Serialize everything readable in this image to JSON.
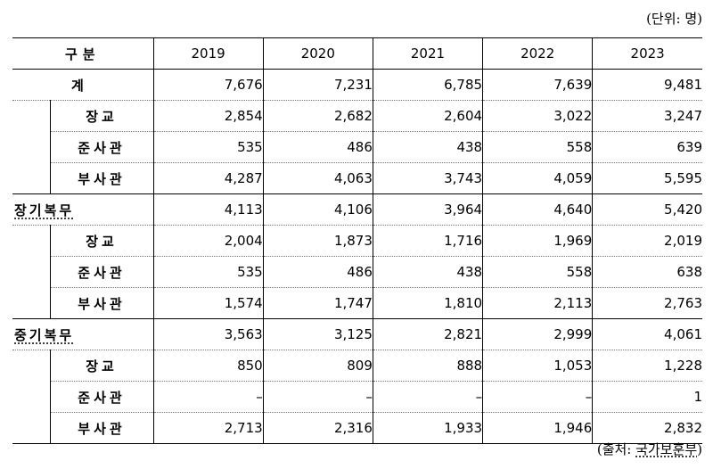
{
  "unit_note": "(단위: 명)",
  "source_prefix": "(출처: ",
  "source_org": "국가보훈부",
  "source_suffix": ")",
  "header": {
    "category": "구분",
    "years": [
      "2019",
      "2020",
      "2021",
      "2022",
      "2023"
    ]
  },
  "groups": [
    {
      "label": "계",
      "values": [
        "7,676",
        "7,231",
        "6,785",
        "7,639",
        "9,481"
      ],
      "rows": [
        {
          "label": "장교",
          "values": [
            "2,854",
            "2,682",
            "2,604",
            "3,022",
            "3,247"
          ]
        },
        {
          "label": "준사관",
          "values": [
            "535",
            "486",
            "438",
            "558",
            "639"
          ]
        },
        {
          "label": "부사관",
          "values": [
            "4,287",
            "4,063",
            "3,743",
            "4,059",
            "5,595"
          ]
        }
      ]
    },
    {
      "label": "장기복무",
      "values": [
        "4,113",
        "4,106",
        "3,964",
        "4,640",
        "5,420"
      ],
      "rows": [
        {
          "label": "장교",
          "values": [
            "2,004",
            "1,873",
            "1,716",
            "1,969",
            "2,019"
          ]
        },
        {
          "label": "준사관",
          "values": [
            "535",
            "486",
            "438",
            "558",
            "638"
          ]
        },
        {
          "label": "부사관",
          "values": [
            "1,574",
            "1,747",
            "1,810",
            "2,113",
            "2,763"
          ]
        }
      ]
    },
    {
      "label": "중기복무",
      "values": [
        "3,563",
        "3,125",
        "2,821",
        "2,999",
        "4,061"
      ],
      "rows": [
        {
          "label": "장교",
          "values": [
            "850",
            "809",
            "888",
            "1,053",
            "1,228"
          ]
        },
        {
          "label": "준사관",
          "values": [
            "–",
            "–",
            "–",
            "–",
            "1"
          ]
        },
        {
          "label": "부사관",
          "values": [
            "2,713",
            "2,316",
            "1,933",
            "1,946",
            "2,832"
          ]
        }
      ]
    }
  ]
}
